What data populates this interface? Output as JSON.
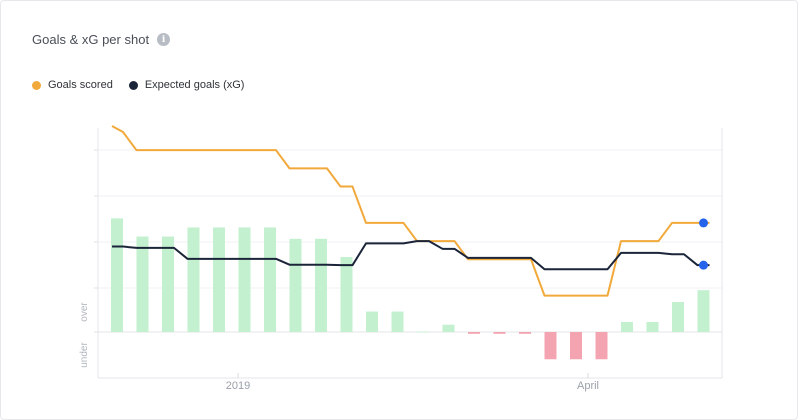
{
  "panel": {
    "title": "Goals & xG per shot",
    "info_icon": "info-icon"
  },
  "chart_data": {
    "type": "bar",
    "title": "Goals & xG per shot",
    "xlabel": "",
    "ylabel": "",
    "x_tick_labels": [
      "2019",
      "April"
    ],
    "side_labels": {
      "over": "over",
      "under": "under"
    },
    "legend_position": "top-left",
    "grid": true,
    "ylim": [
      -0.07,
      0.5
    ],
    "bar_series": {
      "name": "",
      "positive_color": "#c3f0cf",
      "negative_color": "#f4a3b0",
      "values": [
        0.25,
        0.21,
        0.21,
        0.23,
        0.23,
        0.23,
        0.23,
        0.205,
        0.205,
        0.165,
        0.045,
        0.045,
        0.001,
        0.016,
        -0.004,
        -0.004,
        -0.004,
        -0.06,
        -0.06,
        -0.06,
        0.022,
        0.022,
        0.066,
        0.092
      ]
    },
    "series": [
      {
        "name": "Goals scored",
        "color": "#f2a93b",
        "values": [
          0.44,
          0.4,
          0.4,
          0.4,
          0.4,
          0.4,
          0.4,
          0.36,
          0.36,
          0.32,
          0.24,
          0.24,
          0.2,
          0.2,
          0.16,
          0.16,
          0.16,
          0.08,
          0.08,
          0.08,
          0.2,
          0.2,
          0.24,
          0.24
        ]
      },
      {
        "name": "Expected goals (xG)",
        "color": "#1b2539",
        "values": [
          0.188,
          0.185,
          0.185,
          0.161,
          0.161,
          0.161,
          0.161,
          0.148,
          0.148,
          0.147,
          0.195,
          0.195,
          0.2,
          0.183,
          0.163,
          0.163,
          0.163,
          0.138,
          0.138,
          0.138,
          0.174,
          0.174,
          0.171,
          0.147
        ]
      }
    ],
    "endpoint_marker_color": "#2563eb"
  }
}
